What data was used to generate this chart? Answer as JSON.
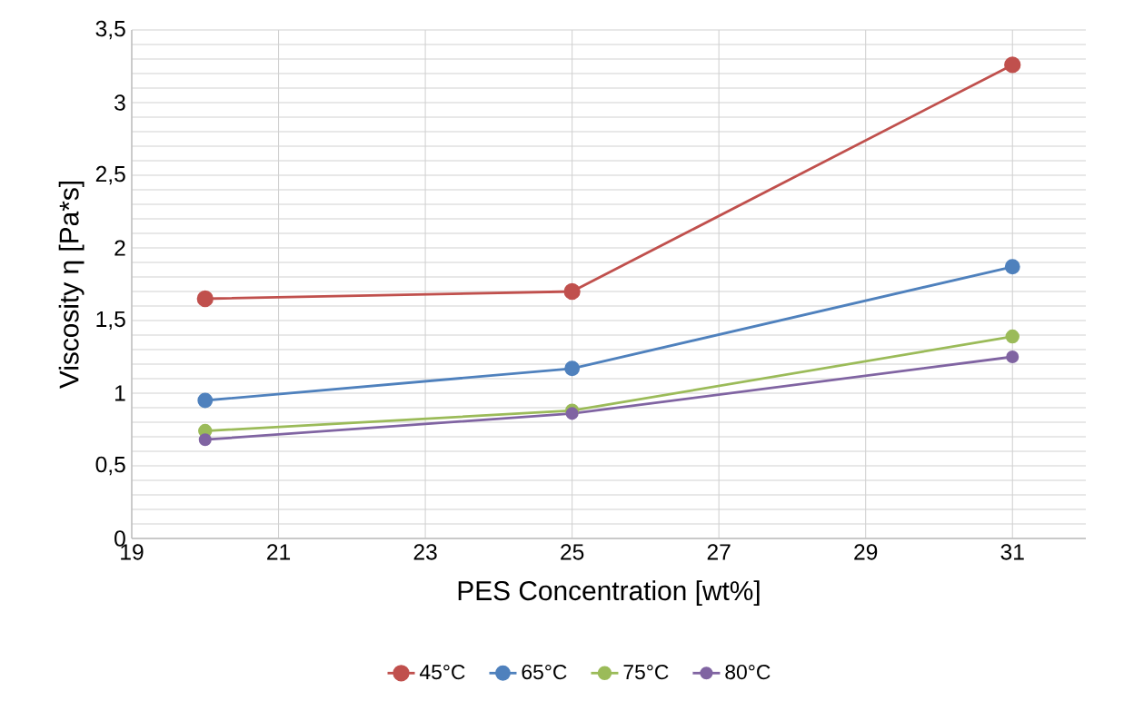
{
  "chart_data": {
    "type": "line",
    "xlabel": "PES Concentration [wt%]",
    "ylabel": "Viscosity η [Pa*s]",
    "x": [
      20,
      25,
      31
    ],
    "series": [
      {
        "name": "45°C",
        "color": "#c0504d",
        "values": [
          1.65,
          1.7,
          3.26
        ]
      },
      {
        "name": "65°C",
        "color": "#4f81bd",
        "values": [
          0.95,
          1.17,
          1.87
        ]
      },
      {
        "name": "75°C",
        "color": "#9bbb59",
        "values": [
          0.74,
          0.88,
          1.39
        ]
      },
      {
        "name": "80°C",
        "color": "#8064a2",
        "values": [
          0.68,
          0.86,
          1.25
        ]
      }
    ],
    "xlim": [
      19,
      32
    ],
    "xticks": [
      19,
      21,
      23,
      25,
      27,
      29,
      31
    ],
    "ylim": [
      0,
      3.5
    ],
    "yticks": [
      0,
      {
        "value": 0.1,
        "label": null
      },
      {
        "value": 0.2,
        "label": null
      },
      {
        "value": 0.3,
        "label": null
      },
      {
        "value": 0.4,
        "label": null
      },
      {
        "value": 0.5,
        "label": "0,5"
      },
      {
        "value": 0.6,
        "label": null
      },
      {
        "value": 0.7,
        "label": null
      },
      {
        "value": 0.8,
        "label": null
      },
      {
        "value": 0.9,
        "label": null
      },
      1,
      {
        "value": 1.1,
        "label": null
      },
      {
        "value": 1.2,
        "label": null
      },
      {
        "value": 1.3,
        "label": null
      },
      {
        "value": 1.4,
        "label": null
      },
      {
        "value": 1.5,
        "label": "1,5"
      },
      {
        "value": 1.6,
        "label": null
      },
      {
        "value": 1.7,
        "label": null
      },
      {
        "value": 1.8,
        "label": null
      },
      {
        "value": 1.9,
        "label": null
      },
      2,
      {
        "value": 2.1,
        "label": null
      },
      {
        "value": 2.2,
        "label": null
      },
      {
        "value": 2.3,
        "label": null
      },
      {
        "value": 2.4,
        "label": null
      },
      {
        "value": 2.5,
        "label": "2,5"
      },
      {
        "value": 2.6,
        "label": null
      },
      {
        "value": 2.7,
        "label": null
      },
      {
        "value": 2.8,
        "label": null
      },
      {
        "value": 2.9,
        "label": null
      },
      3,
      {
        "value": 3.1,
        "label": null
      },
      {
        "value": 3.2,
        "label": null
      },
      {
        "value": 3.3,
        "label": null
      },
      {
        "value": 3.4,
        "label": null
      },
      {
        "value": 3.5,
        "label": "3,5"
      }
    ],
    "grid": true,
    "legend": "bottom",
    "marker": "circle",
    "line_style": "solid"
  }
}
